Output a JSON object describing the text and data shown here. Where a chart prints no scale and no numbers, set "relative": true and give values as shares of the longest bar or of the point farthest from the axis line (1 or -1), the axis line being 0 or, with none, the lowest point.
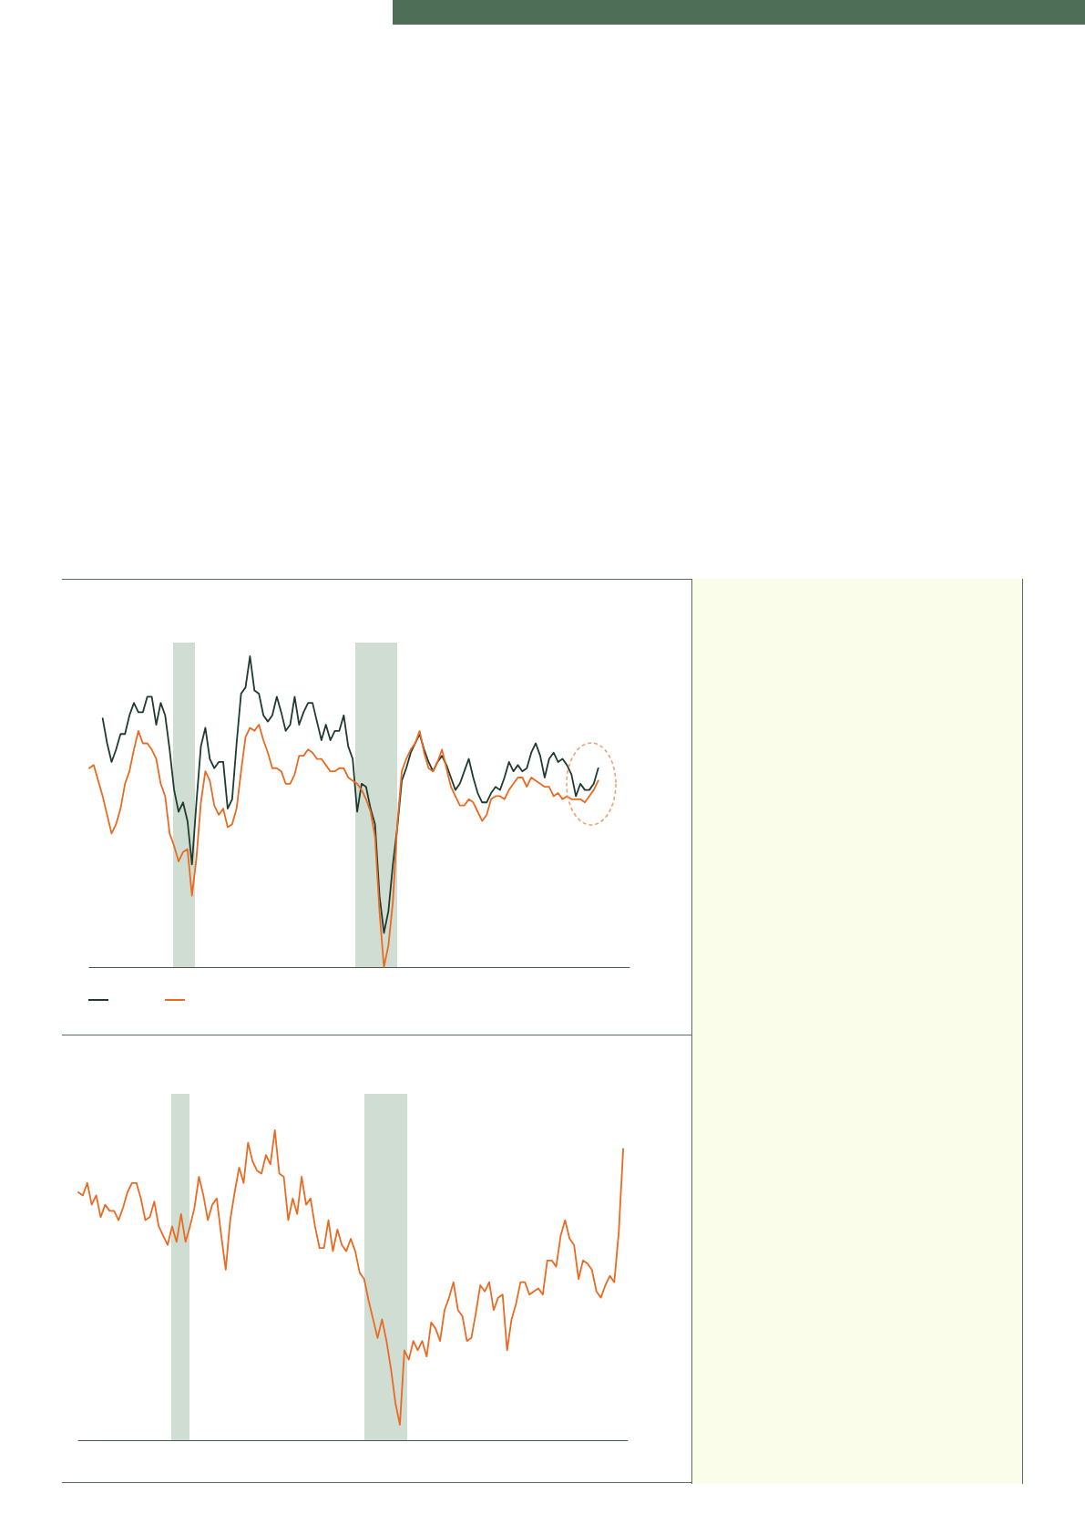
{
  "chart_data": [
    {
      "type": "line",
      "relative": true,
      "categories": [
        null,
        null,
        null,
        null,
        null,
        null,
        null,
        null,
        null,
        null,
        null,
        null,
        null,
        null,
        null,
        null,
        null,
        null,
        null,
        null,
        null,
        null,
        null,
        null,
        null,
        null,
        null,
        null,
        null,
        null,
        null,
        null,
        null,
        null,
        null,
        null,
        null,
        null,
        null,
        null,
        null,
        null,
        null,
        null,
        null,
        null,
        null,
        null,
        null,
        null,
        null,
        null,
        null,
        null,
        null,
        null,
        null,
        null,
        null,
        null,
        null,
        null,
        null,
        null,
        null,
        null,
        null,
        null,
        null,
        null,
        null,
        null,
        null,
        null,
        null,
        null,
        null,
        null,
        null,
        null,
        null,
        null,
        null,
        null,
        null,
        null,
        null,
        null,
        null,
        null,
        null,
        null,
        null,
        null,
        null,
        null,
        null,
        null,
        null,
        null,
        null,
        null,
        null,
        null,
        null,
        null,
        null,
        null,
        null,
        null,
        null,
        null,
        null,
        null,
        null,
        null,
        null,
        null,
        null,
        null,
        null,
        null
      ],
      "series": [
        {
          "color": "#1f3b2d",
          "values": [
            null,
            null,
            null,
            0.8,
            0.72,
            0.66,
            0.7,
            0.75,
            0.75,
            0.81,
            0.85,
            0.82,
            0.82,
            0.87,
            0.87,
            0.78,
            0.85,
            0.81,
            0.7,
            0.57,
            0.5,
            0.53,
            0.47,
            0.33,
            0.53,
            0.71,
            0.77,
            0.67,
            0.64,
            0.66,
            0.66,
            0.51,
            0.54,
            0.72,
            0.88,
            0.9,
            1,
            0.89,
            0.88,
            0.81,
            0.79,
            0.81,
            0.87,
            0.82,
            0.76,
            0.78,
            0.87,
            0.78,
            0.82,
            0.85,
            0.85,
            0.79,
            0.73,
            0.78,
            0.73,
            0.76,
            0.76,
            0.81,
            0.71,
            0.67,
            0.5,
            0.59,
            0.58,
            0.51,
            0.46,
            0.23,
            0.11,
            0.18,
            0.33,
            0.45,
            0.6,
            0.64,
            0.69,
            0.72,
            0.75,
            0.7,
            0.66,
            0.63,
            0.66,
            0.68,
            0.65,
            0.61,
            0.57,
            0.59,
            0.63,
            0.67,
            0.61,
            0.56,
            0.53,
            0.53,
            0.56,
            0.58,
            0.57,
            0.61,
            0.66,
            0.63,
            0.65,
            0.63,
            0.64,
            0.69,
            0.72,
            0.68,
            0.61,
            0.67,
            0.69,
            0.66,
            0.67,
            0.65,
            0.62,
            0.55,
            0.59,
            0.57,
            0.57,
            0.59,
            0.64,
            null,
            null,
            null,
            null,
            null,
            null,
            null
          ]
        },
        {
          "color": "#ea6a22",
          "values": [
            0.64,
            0.65,
            0.6,
            0.55,
            0.49,
            0.43,
            0.46,
            0.51,
            0.59,
            0.63,
            0.7,
            0.76,
            0.72,
            0.72,
            0.7,
            0.67,
            0.59,
            0.55,
            0.43,
            0.39,
            0.34,
            0.37,
            0.38,
            0.23,
            0.35,
            0.53,
            0.63,
            0.6,
            0.52,
            0.49,
            0.51,
            0.45,
            0.46,
            0.51,
            0.63,
            0.74,
            0.77,
            0.76,
            0.78,
            0.73,
            0.69,
            0.64,
            0.64,
            0.63,
            0.59,
            0.59,
            0.62,
            0.68,
            0.68,
            0.7,
            0.69,
            0.67,
            0.67,
            0.65,
            0.63,
            0.63,
            0.64,
            0.64,
            0.61,
            0.6,
            0.59,
            0.57,
            0.54,
            0.5,
            0.42,
            0.18,
            0,
            0.07,
            0.21,
            0.46,
            0.63,
            0.67,
            0.7,
            0.72,
            0.76,
            0.69,
            0.64,
            0.63,
            0.66,
            0.7,
            0.64,
            0.58,
            0.55,
            0.52,
            0.52,
            0.54,
            0.53,
            0.5,
            0.47,
            0.49,
            0.54,
            0.55,
            0.55,
            0.54,
            0.57,
            0.59,
            0.61,
            0.61,
            0.58,
            0.61,
            0.6,
            0.59,
            0.58,
            0.58,
            0.55,
            0.56,
            0.54,
            0.55,
            0.54,
            0.54,
            0.54,
            0.53,
            0.55,
            0.57,
            0.6,
            null,
            null,
            null,
            null,
            null,
            null,
            null
          ]
        }
      ]
    },
    {
      "type": "line",
      "relative": true,
      "categories": [
        null,
        null,
        null,
        null,
        null,
        null,
        null,
        null,
        null,
        null,
        null,
        null,
        null,
        null,
        null,
        null,
        null,
        null,
        null,
        null,
        null,
        null,
        null,
        null,
        null,
        null,
        null,
        null,
        null,
        null,
        null,
        null,
        null,
        null,
        null,
        null,
        null,
        null,
        null,
        null,
        null,
        null,
        null,
        null,
        null,
        null,
        null,
        null,
        null,
        null,
        null,
        null,
        null,
        null,
        null,
        null,
        null,
        null,
        null,
        null,
        null,
        null,
        null,
        null,
        null,
        null,
        null,
        null,
        null,
        null,
        null,
        null,
        null,
        null,
        null,
        null,
        null,
        null,
        null,
        null,
        null,
        null,
        null,
        null,
        null,
        null,
        null,
        null,
        null,
        null,
        null,
        null,
        null,
        null,
        null,
        null,
        null,
        null,
        null,
        null,
        null,
        null,
        null,
        null,
        null,
        null,
        null,
        null,
        null,
        null,
        null,
        null,
        null,
        null,
        null,
        null,
        null,
        null,
        null,
        null,
        null,
        null,
        null,
        null
      ],
      "series": [
        {
          "color": "#ea6a22",
          "values": [
            0.8,
            0.79,
            0.83,
            0.76,
            0.79,
            0.72,
            0.76,
            0.74,
            0.74,
            0.71,
            0.75,
            0.8,
            0.83,
            0.83,
            0.78,
            0.71,
            0.72,
            0.77,
            0.69,
            0.66,
            0.63,
            0.69,
            0.64,
            0.73,
            0.64,
            0.69,
            0.75,
            0.85,
            0.79,
            0.71,
            0.76,
            0.78,
            0.66,
            0.55,
            0.71,
            0.8,
            0.88,
            0.83,
            0.96,
            0.9,
            0.87,
            0.86,
            0.92,
            0.89,
            1,
            0.86,
            0.85,
            0.71,
            0.78,
            0.73,
            0.85,
            0.76,
            0.78,
            0.69,
            0.62,
            0.62,
            0.71,
            0.61,
            0.68,
            0.63,
            0.61,
            0.65,
            0.61,
            0.54,
            0.52,
            0.45,
            0.39,
            0.33,
            0.39,
            0.32,
            0.23,
            0.12,
            0.05,
            0.29,
            0.26,
            0.32,
            0.29,
            0.32,
            0.27,
            0.38,
            0.36,
            0.32,
            0.42,
            0.46,
            0.51,
            0.42,
            0.4,
            0.32,
            0.33,
            0.41,
            0.5,
            0.48,
            0.51,
            0.42,
            0.46,
            0.47,
            0.29,
            0.39,
            0.44,
            0.51,
            0.51,
            0.47,
            0.48,
            0.49,
            0.47,
            0.58,
            0.58,
            0.56,
            0.66,
            0.71,
            0.65,
            0.63,
            0.52,
            0.58,
            0.57,
            0.55,
            0.48,
            0.46,
            0.5,
            0.53,
            0.51,
            0.67,
            0.94,
            null
          ]
        }
      ]
    }
  ]
}
